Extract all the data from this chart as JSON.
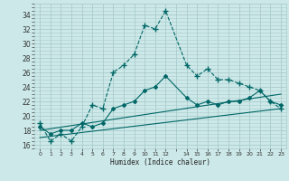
{
  "title": "",
  "xlabel": "Humidex (Indice chaleur)",
  "ylabel": "",
  "background_color": "#cce8e8",
  "grid_color": "#aacccc",
  "line_color": "#006666",
  "xlim": [
    -0.5,
    23.5
  ],
  "ylim": [
    15.5,
    35.5
  ],
  "yticks": [
    16,
    18,
    20,
    22,
    24,
    26,
    28,
    30,
    32,
    34
  ],
  "xtick_positions": [
    0,
    1,
    2,
    3,
    4,
    5,
    6,
    7,
    8,
    9,
    10,
    11,
    12,
    13,
    14,
    15,
    16,
    17,
    18,
    19,
    20,
    21,
    22,
    23
  ],
  "xtick_labels": [
    "0",
    "1",
    "2",
    "3",
    "4",
    "5",
    "6",
    "7",
    "8",
    "9",
    "10",
    "11",
    "12",
    "",
    "14",
    "15",
    "16",
    "17",
    "18",
    "19",
    "20",
    "21",
    "22",
    "23"
  ],
  "line1_x": [
    0,
    1,
    2,
    3,
    4,
    5,
    6,
    7,
    8,
    9,
    10,
    11,
    12,
    14,
    15,
    16,
    17,
    18,
    19,
    20,
    21,
    22,
    23
  ],
  "line1_y": [
    19.0,
    16.5,
    17.5,
    16.5,
    18.5,
    21.5,
    21.0,
    26.0,
    27.0,
    28.5,
    32.5,
    32.0,
    34.5,
    27.0,
    25.5,
    26.5,
    25.0,
    25.0,
    24.5,
    24.0,
    23.5,
    22.0,
    21.0
  ],
  "line2_x": [
    0,
    1,
    2,
    3,
    4,
    5,
    6,
    7,
    8,
    9,
    10,
    11,
    12,
    14,
    15,
    16,
    17,
    18,
    19,
    20,
    21,
    22,
    23
  ],
  "line2_y": [
    18.5,
    17.5,
    18.0,
    18.0,
    19.0,
    18.5,
    19.0,
    21.0,
    21.5,
    22.0,
    23.5,
    24.0,
    25.5,
    22.5,
    21.5,
    22.0,
    21.5,
    22.0,
    22.0,
    22.5,
    23.5,
    22.0,
    21.5
  ],
  "line3_x": [
    0,
    23
  ],
  "line3_y": [
    18.0,
    23.0
  ],
  "line4_x": [
    0,
    23
  ],
  "line4_y": [
    17.0,
    21.0
  ]
}
